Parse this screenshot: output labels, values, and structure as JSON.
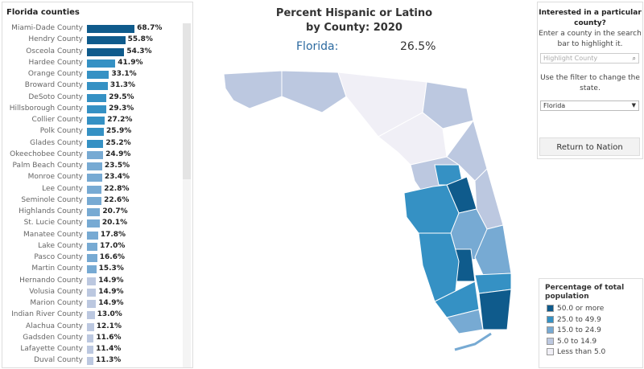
{
  "chart_data": {
    "type": "bar",
    "title": "Florida counties",
    "categories": [
      "Miami-Dade County",
      "Hendry County",
      "Osceola County",
      "Hardee County",
      "Orange County",
      "Broward County",
      "DeSoto County",
      "Hillsborough County",
      "Collier County",
      "Polk County",
      "Glades County",
      "Okeechobee County",
      "Palm Beach County",
      "Monroe County",
      "Lee County",
      "Seminole County",
      "Highlands County",
      "St. Lucie County",
      "Manatee County",
      "Lake County",
      "Pasco County",
      "Martin County",
      "Hernando County",
      "Volusia County",
      "Marion County",
      "Indian River County",
      "Alachua County",
      "Gadsden County",
      "Lafayette County",
      "Duval County"
    ],
    "values": [
      68.7,
      55.8,
      54.3,
      41.9,
      33.1,
      31.3,
      29.5,
      29.3,
      27.2,
      25.9,
      25.2,
      24.9,
      23.5,
      23.4,
      22.8,
      22.6,
      20.7,
      20.1,
      17.8,
      17.0,
      16.6,
      15.3,
      14.9,
      14.9,
      14.9,
      13.0,
      12.1,
      11.6,
      11.4,
      11.3
    ],
    "labels": [
      "68.7%",
      "55.8%",
      "54.3%",
      "41.9%",
      "33.1%",
      "31.3%",
      "29.5%",
      "29.3%",
      "27.2%",
      "25.9%",
      "25.2%",
      "24.9%",
      "23.5%",
      "23.4%",
      "22.8%",
      "22.6%",
      "20.7%",
      "20.1%",
      "17.8%",
      "17.0%",
      "16.6%",
      "15.3%",
      "14.9%",
      "14.9%",
      "14.9%",
      "13.0%",
      "12.1%",
      "11.6%",
      "11.4%",
      "11.3%"
    ],
    "orientation": "horizontal"
  },
  "map": {
    "title_line1": "Percent Hispanic or Latino",
    "title_line2": "by County: 2020",
    "state_label": "Florida:",
    "state_value": "26.5%"
  },
  "side": {
    "q": "Interested in a particular county?",
    "p": "Enter a county in the search bar to highlight it.",
    "search_placeholder": "Highlight County",
    "search_icon": "search-icon",
    "filter_text": "Use the filter to change the state.",
    "filter_value": "Florida",
    "return_label": "Return to Nation"
  },
  "legend": {
    "title": "Percentage of total population",
    "items": [
      {
        "label": "50.0 or more",
        "color": "#0f5b8c"
      },
      {
        "label": "25.0 to 49.9",
        "color": "#3591c4"
      },
      {
        "label": "15.0 to 24.9",
        "color": "#77aad3"
      },
      {
        "label": "5.0 to 14.9",
        "color": "#bcc8e0"
      },
      {
        "label": "Less than 5.0",
        "color": "#f0eff6"
      }
    ]
  }
}
